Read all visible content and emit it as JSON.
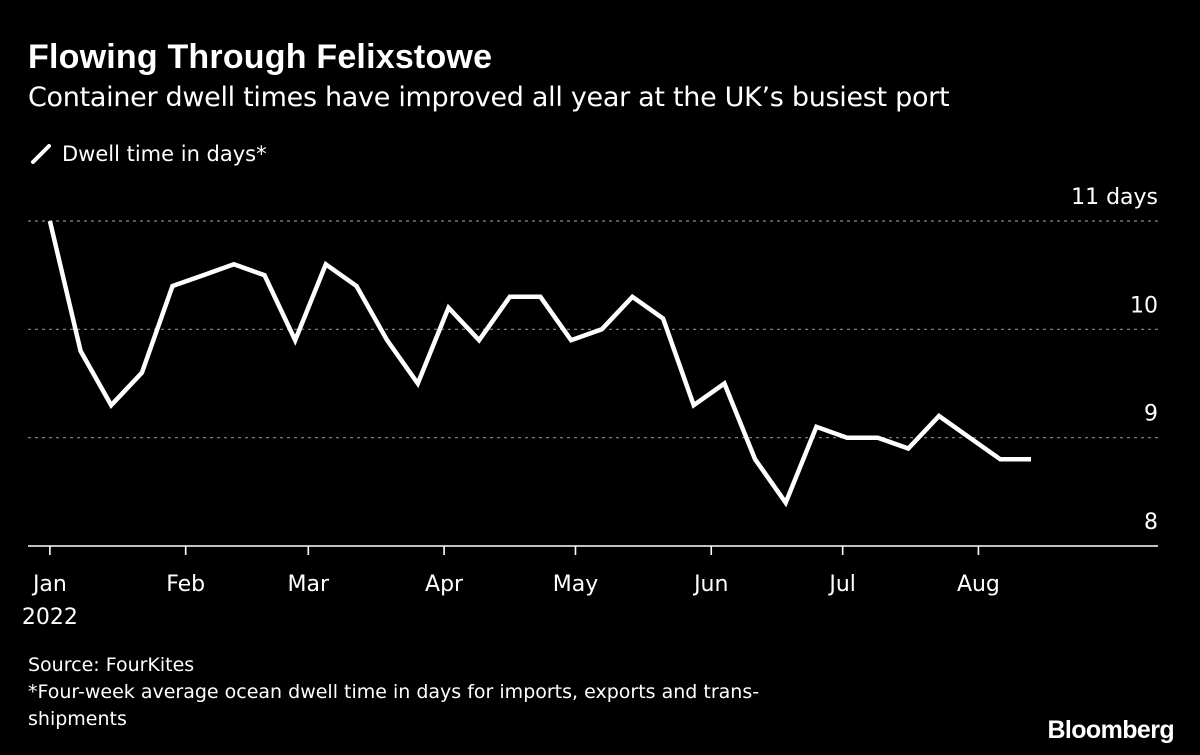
{
  "title": "Flowing Through Felixstowe",
  "subtitle": "Container dwell times have improved all year at the UK’s busiest port",
  "legend_label": "Dwell time in days*",
  "source": "Source: FourKites",
  "footnote_line1": "*Four-week average ocean dwell time in days for imports, exports and trans-",
  "footnote_line2": "shipments",
  "brand": "Bloomberg",
  "colors": {
    "background": "#000000",
    "line": "#ffffff",
    "grid": "#8a8a8a"
  },
  "chart_data": {
    "type": "line",
    "title": "Flowing Through Felixstowe",
    "subtitle": "Container dwell times have improved all year at the UK’s busiest port",
    "ylabel": "",
    "y_unit": "days",
    "ylim": [
      8,
      11
    ],
    "y_ticks": [
      {
        "value": 11,
        "label": "11 days"
      },
      {
        "value": 10,
        "label": "10"
      },
      {
        "value": 9,
        "label": "9"
      },
      {
        "value": 8,
        "label": "8"
      }
    ],
    "x_ticks": [
      {
        "date": "2022-01-01",
        "label": "Jan",
        "sublabel": "2022"
      },
      {
        "date": "2022-02-01",
        "label": "Feb"
      },
      {
        "date": "2022-03-01",
        "label": "Mar"
      },
      {
        "date": "2022-04-01",
        "label": "Apr"
      },
      {
        "date": "2022-05-01",
        "label": "May"
      },
      {
        "date": "2022-06-01",
        "label": "Jun"
      },
      {
        "date": "2022-07-01",
        "label": "Jul"
      },
      {
        "date": "2022-08-01",
        "label": "Aug"
      }
    ],
    "xlim": [
      "2021-12-27",
      "2022-09-11"
    ],
    "grid": true,
    "legend": "top-left",
    "series": [
      {
        "name": "Dwell time in days*",
        "x": [
          "2022-01-01",
          "2022-01-08",
          "2022-01-15",
          "2022-01-22",
          "2022-01-29",
          "2022-02-05",
          "2022-02-12",
          "2022-02-19",
          "2022-02-26",
          "2022-03-05",
          "2022-03-12",
          "2022-03-19",
          "2022-03-26",
          "2022-04-02",
          "2022-04-09",
          "2022-04-16",
          "2022-04-23",
          "2022-04-30",
          "2022-05-07",
          "2022-05-14",
          "2022-05-21",
          "2022-05-28",
          "2022-06-04",
          "2022-06-11",
          "2022-06-18",
          "2022-06-25",
          "2022-07-02",
          "2022-07-09",
          "2022-07-16",
          "2022-07-23",
          "2022-07-30",
          "2022-08-06",
          "2022-08-13"
        ],
        "values": [
          11.0,
          9.8,
          9.3,
          9.6,
          10.4,
          10.5,
          10.6,
          10.5,
          9.9,
          10.6,
          10.4,
          9.9,
          9.5,
          10.2,
          9.9,
          10.3,
          10.3,
          9.9,
          10.0,
          10.3,
          10.1,
          9.3,
          9.5,
          8.8,
          8.4,
          9.1,
          9.0,
          9.0,
          8.9,
          9.2,
          9.0,
          8.8,
          8.8
        ]
      }
    ]
  }
}
